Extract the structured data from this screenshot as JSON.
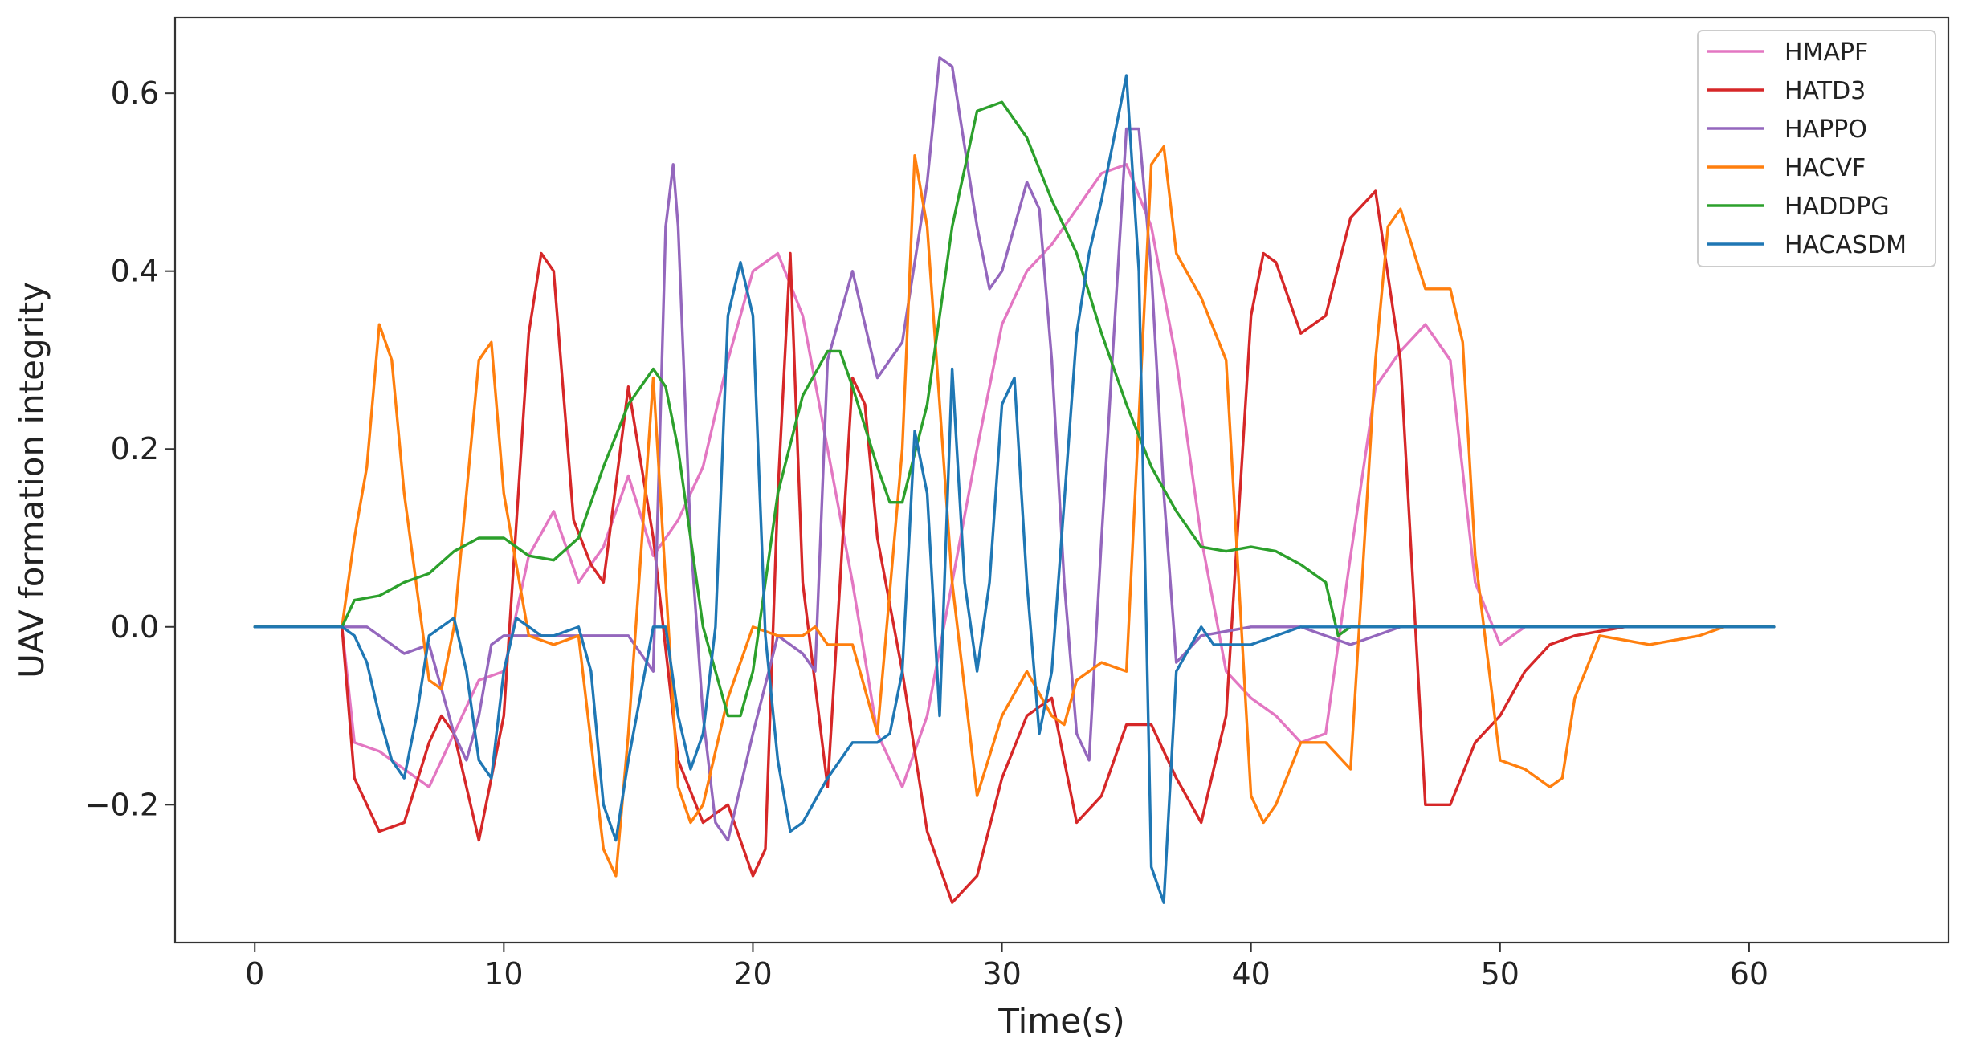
{
  "chart_data": {
    "type": "line",
    "xlabel": "Time(s)",
    "ylabel": "UAV formation integrity",
    "xlim": [
      -3.2,
      68.0
    ],
    "ylim": [
      -0.355,
      0.685
    ],
    "xticks": [
      0,
      10,
      20,
      30,
      40,
      50,
      60
    ],
    "xtick_labels": [
      "0",
      "10",
      "20",
      "30",
      "40",
      "50",
      "60"
    ],
    "yticks": [
      -0.2,
      0.0,
      0.2,
      0.4,
      0.6
    ],
    "ytick_labels": [
      "−0.2",
      "0.0",
      "0.2",
      "0.4",
      "0.6"
    ],
    "grid": false,
    "legend_position": "top-right",
    "series": [
      {
        "name": "HMAPF",
        "color": "#e377c2",
        "x": [
          0,
          3.5,
          4,
          5,
          6,
          7,
          8,
          9,
          10,
          11,
          12,
          13,
          14,
          15,
          16,
          17,
          18,
          19,
          20,
          21,
          22,
          23,
          24,
          25,
          26,
          27,
          28,
          29,
          30,
          31,
          32,
          33,
          34,
          35,
          36,
          37,
          38,
          39,
          40,
          41,
          42,
          43,
          44,
          45,
          46,
          47,
          48,
          49,
          50,
          51,
          55,
          61
        ],
        "y": [
          0,
          0,
          -0.13,
          -0.14,
          -0.16,
          -0.18,
          -0.12,
          -0.06,
          -0.05,
          0.08,
          0.13,
          0.05,
          0.09,
          0.17,
          0.08,
          0.12,
          0.18,
          0.3,
          0.4,
          0.42,
          0.35,
          0.2,
          0.05,
          -0.12,
          -0.18,
          -0.1,
          0.05,
          0.2,
          0.34,
          0.4,
          0.43,
          0.47,
          0.51,
          0.52,
          0.45,
          0.3,
          0.1,
          -0.05,
          -0.08,
          -0.1,
          -0.13,
          -0.12,
          0.08,
          0.27,
          0.31,
          0.34,
          0.3,
          0.05,
          -0.02,
          0,
          0,
          0
        ]
      },
      {
        "name": "HATD3",
        "color": "#d62728",
        "x": [
          0,
          3.5,
          4,
          5,
          6,
          7,
          7.5,
          8,
          9,
          10,
          11,
          11.5,
          12,
          12.8,
          13.5,
          14,
          15,
          16,
          17,
          18,
          19,
          20,
          20.5,
          21,
          21.5,
          22,
          23,
          24,
          24.5,
          25,
          26,
          27,
          28,
          29,
          30,
          31,
          32,
          33,
          34,
          35,
          36,
          37,
          38,
          39,
          40,
          40.5,
          41,
          42,
          43,
          44,
          45,
          46,
          47,
          48,
          49,
          50,
          51,
          52,
          53,
          55,
          61
        ],
        "y": [
          0,
          0,
          -0.17,
          -0.23,
          -0.22,
          -0.13,
          -0.1,
          -0.12,
          -0.24,
          -0.1,
          0.33,
          0.42,
          0.4,
          0.12,
          0.07,
          0.05,
          0.27,
          0.1,
          -0.15,
          -0.22,
          -0.2,
          -0.28,
          -0.25,
          0.15,
          0.42,
          0.05,
          -0.18,
          0.28,
          0.25,
          0.1,
          -0.05,
          -0.23,
          -0.31,
          -0.28,
          -0.17,
          -0.1,
          -0.08,
          -0.22,
          -0.19,
          -0.11,
          -0.11,
          -0.17,
          -0.22,
          -0.1,
          0.35,
          0.42,
          0.41,
          0.33,
          0.35,
          0.46,
          0.49,
          0.3,
          -0.2,
          -0.2,
          -0.13,
          -0.1,
          -0.05,
          -0.02,
          -0.01,
          0,
          0
        ]
      },
      {
        "name": "HAPPO",
        "color": "#9467bd",
        "x": [
          0,
          3.5,
          4.5,
          5.5,
          6,
          7,
          8,
          8.5,
          9,
          9.5,
          10,
          12,
          14,
          15,
          16,
          16.5,
          16.8,
          17,
          17.5,
          18,
          18.5,
          19,
          20,
          21,
          22,
          22.5,
          23,
          24,
          25,
          26,
          27,
          27.5,
          28,
          29,
          29.5,
          30,
          31,
          31.5,
          32,
          32.5,
          33,
          33.5,
          34,
          35,
          35.5,
          36,
          36.5,
          37,
          38,
          40,
          42,
          44,
          45,
          46,
          55,
          61
        ],
        "y": [
          0,
          0,
          0,
          -0.02,
          -0.03,
          -0.02,
          -0.12,
          -0.15,
          -0.1,
          -0.02,
          -0.01,
          -0.01,
          -0.01,
          -0.01,
          -0.05,
          0.45,
          0.52,
          0.45,
          0.1,
          -0.1,
          -0.22,
          -0.24,
          -0.12,
          -0.01,
          -0.03,
          -0.05,
          0.3,
          0.4,
          0.28,
          0.32,
          0.5,
          0.64,
          0.63,
          0.45,
          0.38,
          0.4,
          0.5,
          0.47,
          0.3,
          0.05,
          -0.12,
          -0.15,
          0.1,
          0.56,
          0.56,
          0.4,
          0.15,
          -0.04,
          -0.01,
          0,
          0,
          -0.02,
          -0.01,
          0,
          0,
          0
        ]
      },
      {
        "name": "HACVF",
        "color": "#ff7f0e",
        "x": [
          0,
          3.5,
          4,
          4.5,
          5,
          5.5,
          6,
          7,
          7.5,
          8,
          9,
          9.5,
          10,
          11,
          12,
          13,
          14,
          14.5,
          15,
          16,
          17,
          17.5,
          18,
          19,
          20,
          21,
          22,
          22.5,
          23,
          24,
          25,
          26,
          26.5,
          27,
          28,
          29,
          30,
          31,
          32,
          32.5,
          33,
          34,
          35,
          36,
          36.5,
          37,
          38,
          39,
          40,
          40.5,
          41,
          42,
          43,
          44,
          45,
          45.5,
          46,
          47,
          48,
          48.5,
          49,
          50,
          51,
          52,
          52.5,
          53,
          54,
          56,
          58,
          59
        ],
        "y": [
          0,
          0,
          0.1,
          0.18,
          0.34,
          0.3,
          0.15,
          -0.06,
          -0.07,
          0.0,
          0.3,
          0.32,
          0.15,
          -0.01,
          -0.02,
          -0.01,
          -0.25,
          -0.28,
          -0.12,
          0.28,
          -0.18,
          -0.22,
          -0.2,
          -0.08,
          0.0,
          -0.01,
          -0.01,
          0.0,
          -0.02,
          -0.02,
          -0.12,
          0.2,
          0.53,
          0.45,
          0.05,
          -0.19,
          -0.1,
          -0.05,
          -0.1,
          -0.11,
          -0.06,
          -0.04,
          -0.05,
          0.52,
          0.54,
          0.42,
          0.37,
          0.3,
          -0.19,
          -0.22,
          -0.2,
          -0.13,
          -0.13,
          -0.16,
          0.3,
          0.45,
          0.47,
          0.38,
          0.38,
          0.32,
          0.08,
          -0.15,
          -0.16,
          -0.18,
          -0.17,
          -0.08,
          -0.01,
          -0.02,
          -0.01,
          0
        ]
      },
      {
        "name": "HADDPG",
        "color": "#2ca02c",
        "x": [
          0,
          3.5,
          4,
          5,
          6,
          7,
          8,
          9,
          10,
          11,
          12,
          13,
          14,
          15,
          16,
          16.5,
          17,
          18,
          19,
          19.5,
          20,
          21,
          22,
          23,
          23.5,
          24,
          25,
          25.5,
          26,
          27,
          28,
          29,
          30,
          31,
          32,
          33,
          34,
          35,
          36,
          37,
          38,
          39,
          40,
          41,
          42,
          43,
          43.5,
          44,
          55,
          61
        ],
        "y": [
          0,
          0,
          0.03,
          0.035,
          0.05,
          0.06,
          0.085,
          0.1,
          0.1,
          0.08,
          0.075,
          0.1,
          0.18,
          0.25,
          0.29,
          0.27,
          0.2,
          0.0,
          -0.1,
          -0.1,
          -0.05,
          0.15,
          0.26,
          0.31,
          0.31,
          0.27,
          0.18,
          0.14,
          0.14,
          0.25,
          0.45,
          0.58,
          0.59,
          0.55,
          0.48,
          0.42,
          0.33,
          0.25,
          0.18,
          0.13,
          0.09,
          0.085,
          0.09,
          0.085,
          0.07,
          0.05,
          -0.01,
          0,
          0,
          0
        ]
      },
      {
        "name": "HACASDM",
        "color": "#1f77b4",
        "x": [
          0,
          3.5,
          4,
          4.5,
          5,
          5.5,
          6,
          6.5,
          7,
          7.5,
          8,
          8.5,
          9,
          9.5,
          10,
          10.5,
          11,
          11.5,
          12,
          13,
          13.5,
          14,
          14.5,
          15,
          16,
          16.5,
          17,
          17.5,
          18,
          18.5,
          19,
          19.5,
          20,
          20.5,
          21,
          21.5,
          22,
          23,
          24,
          25,
          25.5,
          26,
          26.5,
          27,
          27.5,
          28,
          28.5,
          29,
          29.5,
          30,
          30.5,
          31,
          31.5,
          32,
          33,
          33.5,
          34,
          34.5,
          35,
          35.5,
          36,
          36.5,
          37,
          38,
          38.5,
          39,
          40,
          41,
          42,
          43,
          44,
          55,
          61
        ],
        "y": [
          0,
          0,
          -0.01,
          -0.04,
          -0.1,
          -0.15,
          -0.17,
          -0.1,
          -0.01,
          0.0,
          0.01,
          -0.05,
          -0.15,
          -0.17,
          -0.05,
          0.01,
          0.0,
          -0.01,
          -0.01,
          0.0,
          -0.05,
          -0.2,
          -0.24,
          -0.15,
          0.0,
          0.0,
          -0.1,
          -0.16,
          -0.12,
          0.0,
          0.35,
          0.41,
          0.35,
          -0.01,
          -0.15,
          -0.23,
          -0.22,
          -0.17,
          -0.13,
          -0.13,
          -0.12,
          -0.05,
          0.22,
          0.15,
          -0.1,
          0.29,
          0.05,
          -0.05,
          0.05,
          0.25,
          0.28,
          0.05,
          -0.12,
          -0.05,
          0.33,
          0.42,
          0.48,
          0.55,
          0.62,
          0.4,
          -0.27,
          -0.31,
          -0.05,
          0.0,
          -0.02,
          -0.02,
          -0.02,
          -0.01,
          0,
          0,
          0,
          0,
          0
        ]
      }
    ]
  }
}
